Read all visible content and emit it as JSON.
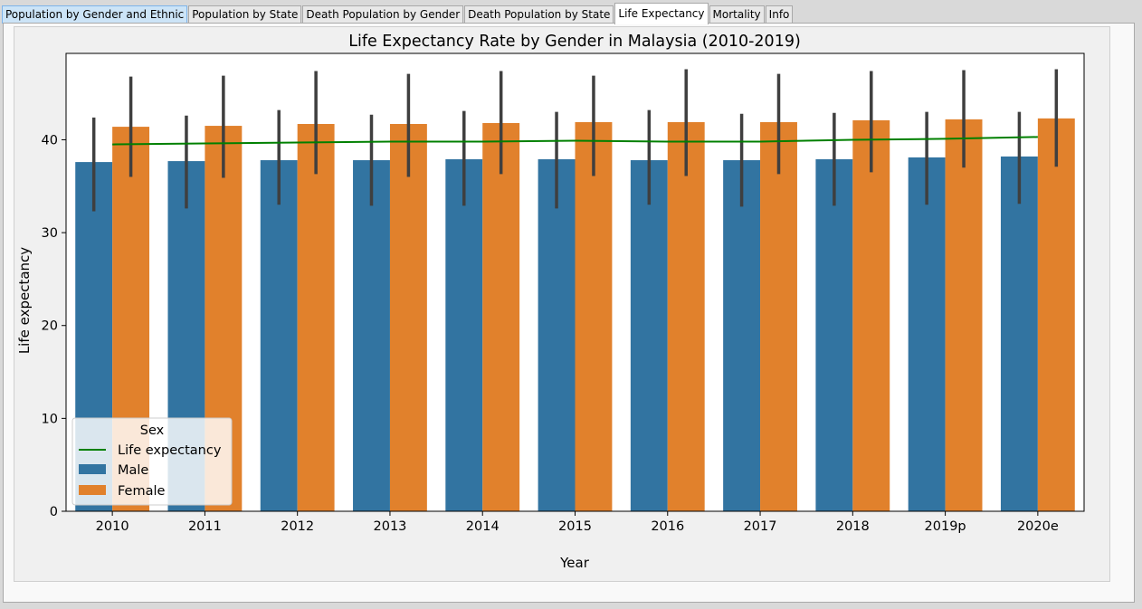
{
  "tabs": [
    {
      "label": "Population by Gender and Ethnic"
    },
    {
      "label": "Population by State"
    },
    {
      "label": "Death Population by Gender"
    },
    {
      "label": "Death Population by State"
    },
    {
      "label": "Life Expectancy"
    },
    {
      "label": "Mortality"
    },
    {
      "label": "Info"
    }
  ],
  "active_tab": "Life Expectancy",
  "chart_data": {
    "type": "bar",
    "title": "Life Expectancy Rate by Gender in Malaysia (2010-2019)",
    "xlabel": "Year",
    "ylabel": "Life expectancy",
    "categories": [
      "2010",
      "2011",
      "2012",
      "2013",
      "2014",
      "2015",
      "2016",
      "2017",
      "2018",
      "2019p",
      "2020e"
    ],
    "series": [
      {
        "name": "Male",
        "color": "#3274a1",
        "values": [
          37.6,
          37.7,
          37.8,
          37.8,
          37.9,
          37.9,
          37.8,
          37.8,
          37.9,
          38.1,
          38.2
        ],
        "error_low": [
          32.3,
          32.6,
          33.0,
          32.9,
          32.9,
          32.6,
          33.0,
          32.8,
          32.9,
          33.0,
          33.1
        ],
        "error_high": [
          42.4,
          42.6,
          43.2,
          42.7,
          43.1,
          43.0,
          43.2,
          42.8,
          42.9,
          43.0,
          43.0
        ]
      },
      {
        "name": "Female",
        "color": "#e1812c",
        "values": [
          41.4,
          41.5,
          41.7,
          41.7,
          41.8,
          41.9,
          41.9,
          41.9,
          42.1,
          42.2,
          42.3
        ],
        "error_low": [
          36.0,
          35.9,
          36.3,
          36.0,
          36.3,
          36.1,
          36.1,
          36.3,
          36.5,
          37.0,
          37.1
        ],
        "error_high": [
          46.8,
          46.9,
          47.4,
          47.1,
          47.4,
          46.9,
          47.6,
          47.1,
          47.4,
          47.5,
          47.6
        ]
      }
    ],
    "line_series": {
      "name": "Life expectancy",
      "color": "#008000",
      "values": [
        39.5,
        39.6,
        39.7,
        39.8,
        39.8,
        39.9,
        39.8,
        39.8,
        40.0,
        40.1,
        40.3
      ]
    },
    "ylim": [
      0,
      49.3
    ],
    "yticks": [
      0,
      10,
      20,
      30,
      40
    ],
    "grid": false,
    "legend": {
      "title": "Sex",
      "position": "lower-left",
      "entries": [
        "Life expectancy",
        "Male",
        "Female"
      ]
    }
  }
}
